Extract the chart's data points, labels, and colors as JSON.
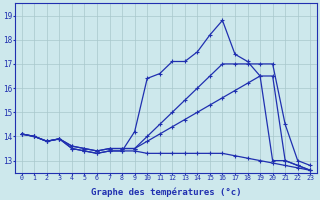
{
  "xlabel": "Graphe des températures (°c)",
  "bg_color": "#cde8ec",
  "line_color": "#2030b0",
  "grid_color": "#a8c8cc",
  "x": [
    0,
    1,
    2,
    3,
    4,
    5,
    6,
    7,
    8,
    9,
    10,
    11,
    12,
    13,
    14,
    15,
    16,
    17,
    18,
    19,
    20,
    21,
    22,
    23
  ],
  "curve1": [
    14.1,
    14.0,
    13.8,
    13.9,
    13.5,
    13.4,
    13.3,
    13.4,
    13.4,
    14.2,
    16.4,
    16.6,
    17.1,
    17.1,
    17.5,
    18.2,
    18.8,
    17.4,
    17.1,
    16.5,
    13.0,
    13.0,
    12.8,
    12.6
  ],
  "curve2": [
    14.1,
    14.0,
    13.8,
    13.9,
    13.6,
    13.5,
    13.4,
    13.5,
    13.5,
    13.5,
    13.8,
    14.1,
    14.4,
    14.7,
    15.0,
    15.3,
    15.6,
    15.9,
    16.2,
    16.5,
    16.5,
    13.0,
    12.8,
    12.6
  ],
  "curve3": [
    14.1,
    14.0,
    13.8,
    13.9,
    13.6,
    13.5,
    13.4,
    13.5,
    13.5,
    13.5,
    14.0,
    14.5,
    15.0,
    15.5,
    16.0,
    16.5,
    17.0,
    17.0,
    17.0,
    17.0,
    17.0,
    14.5,
    13.0,
    12.8
  ],
  "curve4": [
    14.1,
    14.0,
    13.8,
    13.9,
    13.5,
    13.4,
    13.3,
    13.4,
    13.4,
    13.4,
    13.3,
    13.3,
    13.3,
    13.3,
    13.3,
    13.3,
    13.3,
    13.2,
    13.1,
    13.0,
    12.9,
    12.8,
    12.7,
    12.6
  ],
  "ylim": [
    12.5,
    19.5
  ],
  "xlim": [
    -0.5,
    23.5
  ],
  "yticks": [
    13,
    14,
    15,
    16,
    17,
    18,
    19
  ]
}
